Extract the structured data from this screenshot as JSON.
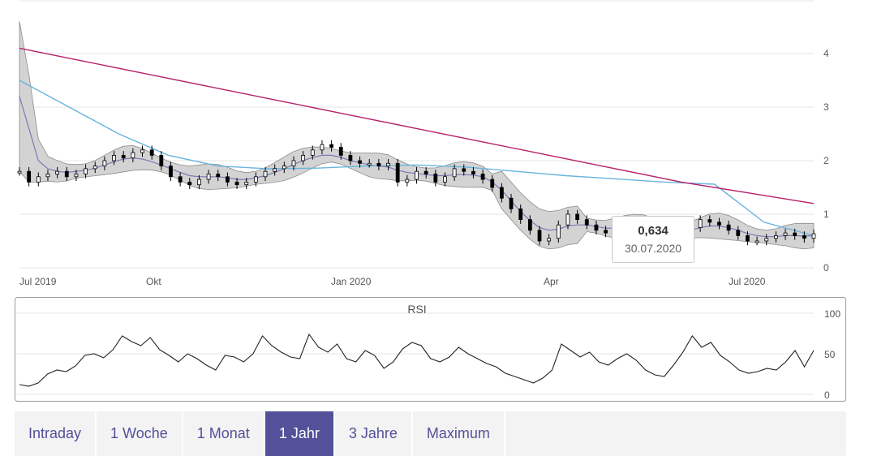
{
  "chart_data": [
    {
      "type": "candlestick",
      "x_tick_labels": [
        "Jul 2019",
        "Okt",
        "Jan 2020",
        "Apr",
        "Jul 2020"
      ],
      "y_tick_labels": [
        "0",
        "1",
        "2",
        "3",
        "4"
      ],
      "ylim": [
        0,
        5
      ],
      "grid": true,
      "series": [
        {
          "color": "#000000",
          "style": "candles",
          "close": [
            1.8,
            1.6,
            1.7,
            1.75,
            1.8,
            1.7,
            1.75,
            1.85,
            1.9,
            2.0,
            2.1,
            2.05,
            2.15,
            2.2,
            2.1,
            1.9,
            1.7,
            1.6,
            1.55,
            1.65,
            1.75,
            1.7,
            1.6,
            1.55,
            1.6,
            1.7,
            1.8,
            1.85,
            1.9,
            2.0,
            2.1,
            2.2,
            2.3,
            2.25,
            2.1,
            2.0,
            1.95,
            1.95,
            1.9,
            1.95,
            1.6,
            1.65,
            1.8,
            1.75,
            1.6,
            1.7,
            1.85,
            1.8,
            1.75,
            1.65,
            1.5,
            1.3,
            1.1,
            0.9,
            0.7,
            0.5,
            0.55,
            0.8,
            1.0,
            0.9,
            0.8,
            0.7,
            0.65,
            0.75,
            0.8,
            0.85,
            0.8,
            0.7,
            0.65,
            0.6,
            0.6,
            0.75,
            0.9,
            0.85,
            0.8,
            0.7,
            0.6,
            0.5,
            0.5,
            0.55,
            0.6,
            0.65,
            0.6,
            0.55,
            0.634
          ]
        },
        {
          "color": "#7a7ab8",
          "style": "line",
          "name": "",
          "values": [
            3.2,
            2.6,
            2.0,
            1.85,
            1.8,
            1.78,
            1.8,
            1.82,
            1.86,
            1.92,
            1.98,
            2.03,
            2.05,
            2.03,
            1.98,
            1.92,
            1.85,
            1.78,
            1.72,
            1.7,
            1.7,
            1.7,
            1.68,
            1.65,
            1.65,
            1.68,
            1.72,
            1.78,
            1.85,
            1.93,
            2.0,
            2.06,
            2.1,
            2.1,
            2.06,
            2.0,
            1.96,
            1.92,
            1.9,
            1.88,
            1.82,
            1.78,
            1.76,
            1.74,
            1.72,
            1.72,
            1.74,
            1.74,
            1.73,
            1.7,
            1.6,
            1.45,
            1.25,
            1.05,
            0.88,
            0.75,
            0.7,
            0.72,
            0.78,
            0.8,
            0.8,
            0.77,
            0.74,
            0.74,
            0.75,
            0.76,
            0.76,
            0.74,
            0.71,
            0.68,
            0.67,
            0.7,
            0.75,
            0.78,
            0.78,
            0.75,
            0.7,
            0.64,
            0.6,
            0.58,
            0.58,
            0.6,
            0.6,
            0.59,
            0.6
          ]
        },
        {
          "color": "#68b4de",
          "style": "line",
          "name": "",
          "values": [
            3.5,
            3.0,
            2.5,
            2.1,
            1.9,
            1.85,
            1.86,
            1.9,
            1.92,
            1.88,
            1.8,
            1.72,
            1.66,
            1.6,
            1.56,
            0.85,
            0.6
          ]
        },
        {
          "color": "#b5226c",
          "style": "line",
          "name": "",
          "values": [
            4.1,
            3.85,
            3.6,
            3.35,
            3.1,
            2.85,
            2.6,
            2.35,
            2.1,
            1.85,
            1.6,
            1.4,
            1.2
          ]
        }
      ],
      "last_value": "0,634",
      "last_date": "30.07.2020"
    },
    {
      "type": "line",
      "title": "RSI",
      "y_tick_labels": [
        "0",
        "50",
        "100"
      ],
      "ylim": [
        0,
        100
      ],
      "series": [
        {
          "color": "#222222",
          "values": [
            12,
            10,
            14,
            25,
            30,
            28,
            35,
            48,
            50,
            45,
            55,
            72,
            65,
            60,
            70,
            55,
            48,
            40,
            50,
            44,
            36,
            30,
            48,
            46,
            40,
            50,
            72,
            60,
            52,
            46,
            44,
            74,
            58,
            52,
            62,
            44,
            40,
            54,
            48,
            32,
            40,
            56,
            64,
            60,
            44,
            40,
            46,
            58,
            50,
            44,
            38,
            34,
            26,
            22,
            18,
            14,
            20,
            30,
            62,
            54,
            46,
            52,
            40,
            36,
            44,
            50,
            42,
            30,
            24,
            22,
            36,
            52,
            72,
            58,
            64,
            48,
            40,
            30,
            26,
            28,
            32,
            30,
            40,
            54,
            34,
            54
          ]
        }
      ]
    }
  ],
  "tooltip": {
    "value": "0,634",
    "date": "30.07.2020"
  },
  "range_selector": {
    "buttons": [
      "Intraday",
      "1 Woche",
      "1 Monat",
      "1 Jahr",
      "3 Jahre",
      "Maximum"
    ],
    "active": "1 Jahr"
  },
  "colors": {
    "accent": "#525199",
    "band_fill": "#d3d3d3"
  }
}
